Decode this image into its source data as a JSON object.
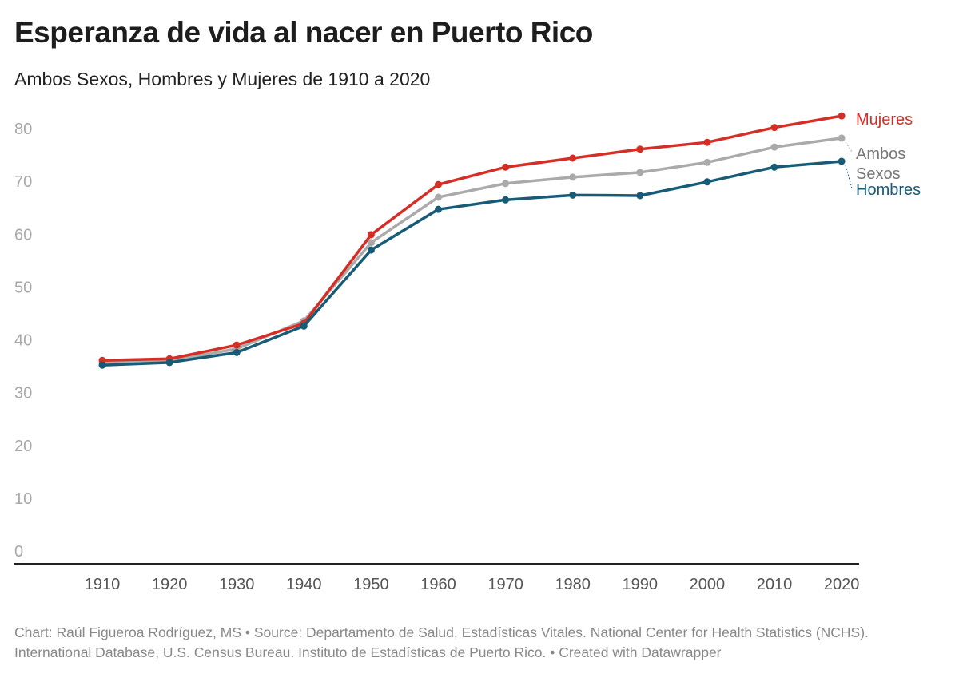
{
  "title": "Esperanza de vida al nacer en Puerto Rico",
  "subtitle": "Ambos Sexos, Hombres y Mujeres de 1910 a 2020",
  "footer": "Chart: Raúl Figueroa Rodríguez, MS • Source: Departamento de Salud, Estadísticas Vitales. National Center for Health Statistics (NCHS). International Database, U.S. Census Bureau. Instituto de Estadísticas de Puerto Rico. • Created with Datawrapper",
  "chart_data": {
    "type": "line",
    "title": "Esperanza de vida al nacer en Puerto Rico",
    "x": [
      "1910",
      "1920",
      "1930",
      "1940",
      "1950",
      "1960",
      "1970",
      "1980",
      "1990",
      "2000",
      "2010",
      "2020"
    ],
    "yticks": [
      "0",
      "10",
      "20",
      "30",
      "40",
      "50",
      "60",
      "70",
      "80"
    ],
    "ylim": [
      0,
      80
    ],
    "grid": false,
    "series": [
      {
        "name": "Mujeres",
        "color": "#d52e26",
        "values": [
          36.1,
          36.4,
          39.0,
          43.1,
          59.9,
          69.4,
          72.7,
          74.4,
          76.1,
          77.4,
          80.2,
          82.4
        ]
      },
      {
        "name": "Ambos Sexos",
        "label_lines": [
          "Ambos",
          "Sexos"
        ],
        "color": "#aaaaaa",
        "label_color": "#777777",
        "values": [
          35.7,
          36.0,
          38.3,
          43.6,
          58.4,
          67.0,
          69.6,
          70.8,
          71.7,
          73.6,
          76.5,
          78.2
        ]
      },
      {
        "name": "Hombres",
        "color": "#175b76",
        "values": [
          35.2,
          35.7,
          37.6,
          42.6,
          57.0,
          64.7,
          66.5,
          67.4,
          67.3,
          69.9,
          72.7,
          73.8
        ]
      }
    ]
  }
}
